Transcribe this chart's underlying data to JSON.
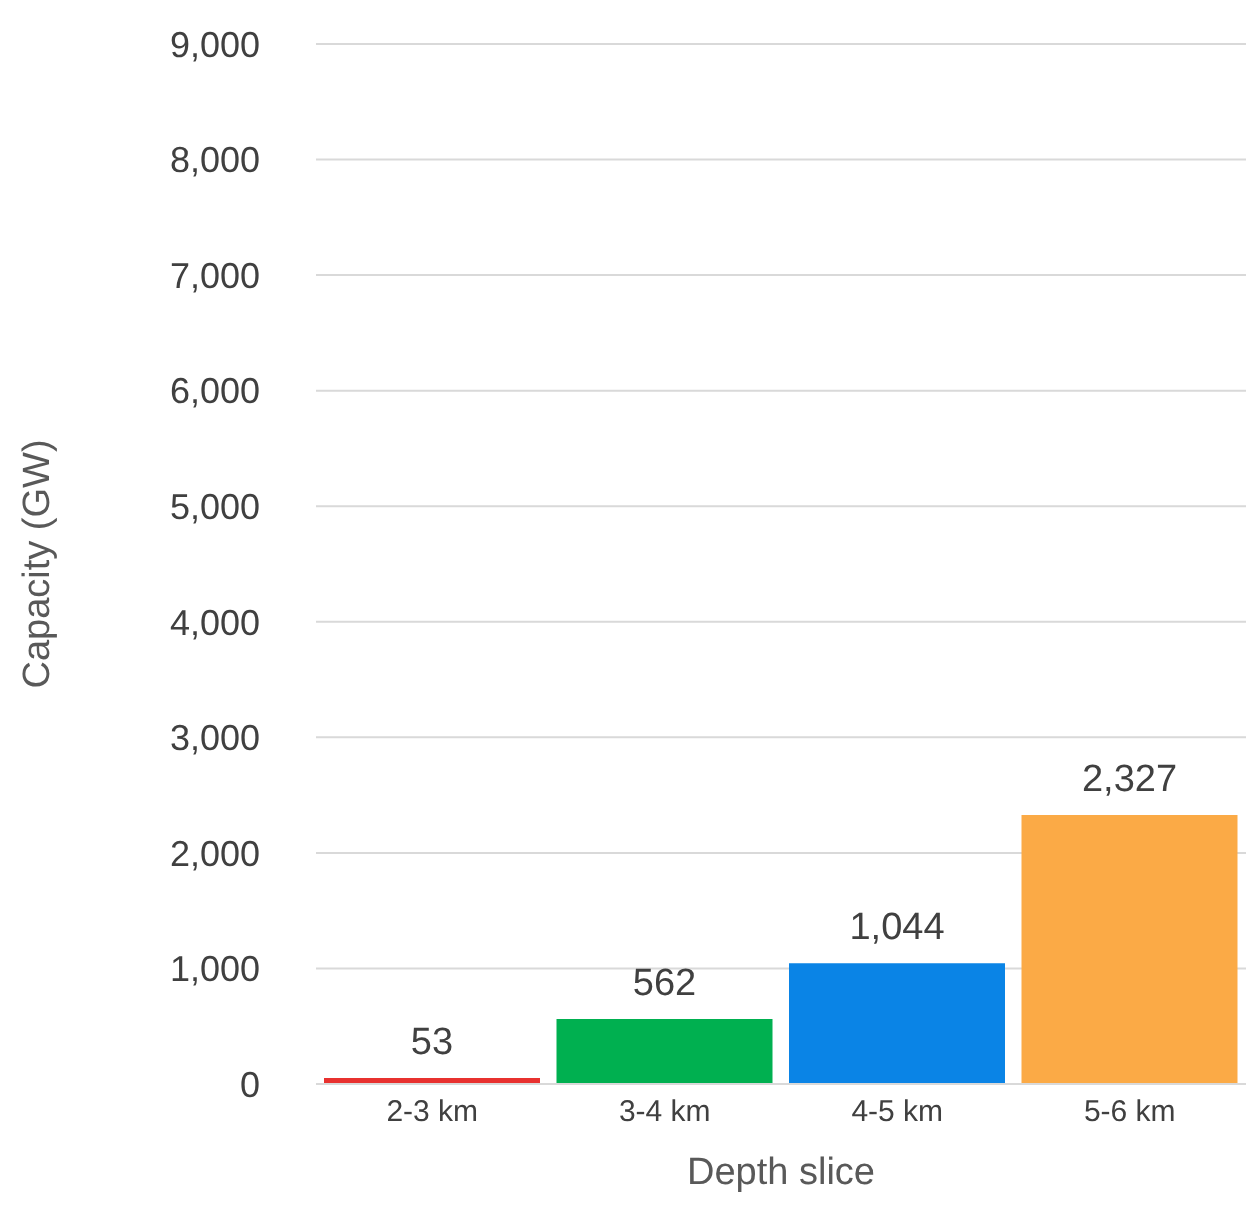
{
  "chart_data": {
    "type": "bar",
    "xlabel": "Depth slice",
    "ylabel": "Capacity (GW)",
    "categories": [
      "2-3 km",
      "3-4 km",
      "4-5 km",
      "5-6 km"
    ],
    "values": [
      53,
      562,
      1044,
      2327
    ],
    "colors": [
      "#e8312f",
      "#00b050",
      "#0a84e6",
      "#fbaa46"
    ],
    "value_labels": [
      "53",
      "562",
      "1,044",
      "2,327"
    ],
    "ylim": [
      0,
      9000
    ],
    "yticks": [
      {
        "value": 0,
        "label": "0"
      },
      {
        "value": 1000,
        "label": "1,000"
      },
      {
        "value": 2000,
        "label": "2,000"
      },
      {
        "value": 3000,
        "label": "3,000"
      },
      {
        "value": 4000,
        "label": "4,000"
      },
      {
        "value": 5000,
        "label": "5,000"
      },
      {
        "value": 6000,
        "label": "6,000"
      },
      {
        "value": 7000,
        "label": "7,000"
      },
      {
        "value": 8000,
        "label": "8,000"
      },
      {
        "value": 9000,
        "label": "9,000"
      }
    ],
    "grid": "y",
    "legend": false
  }
}
